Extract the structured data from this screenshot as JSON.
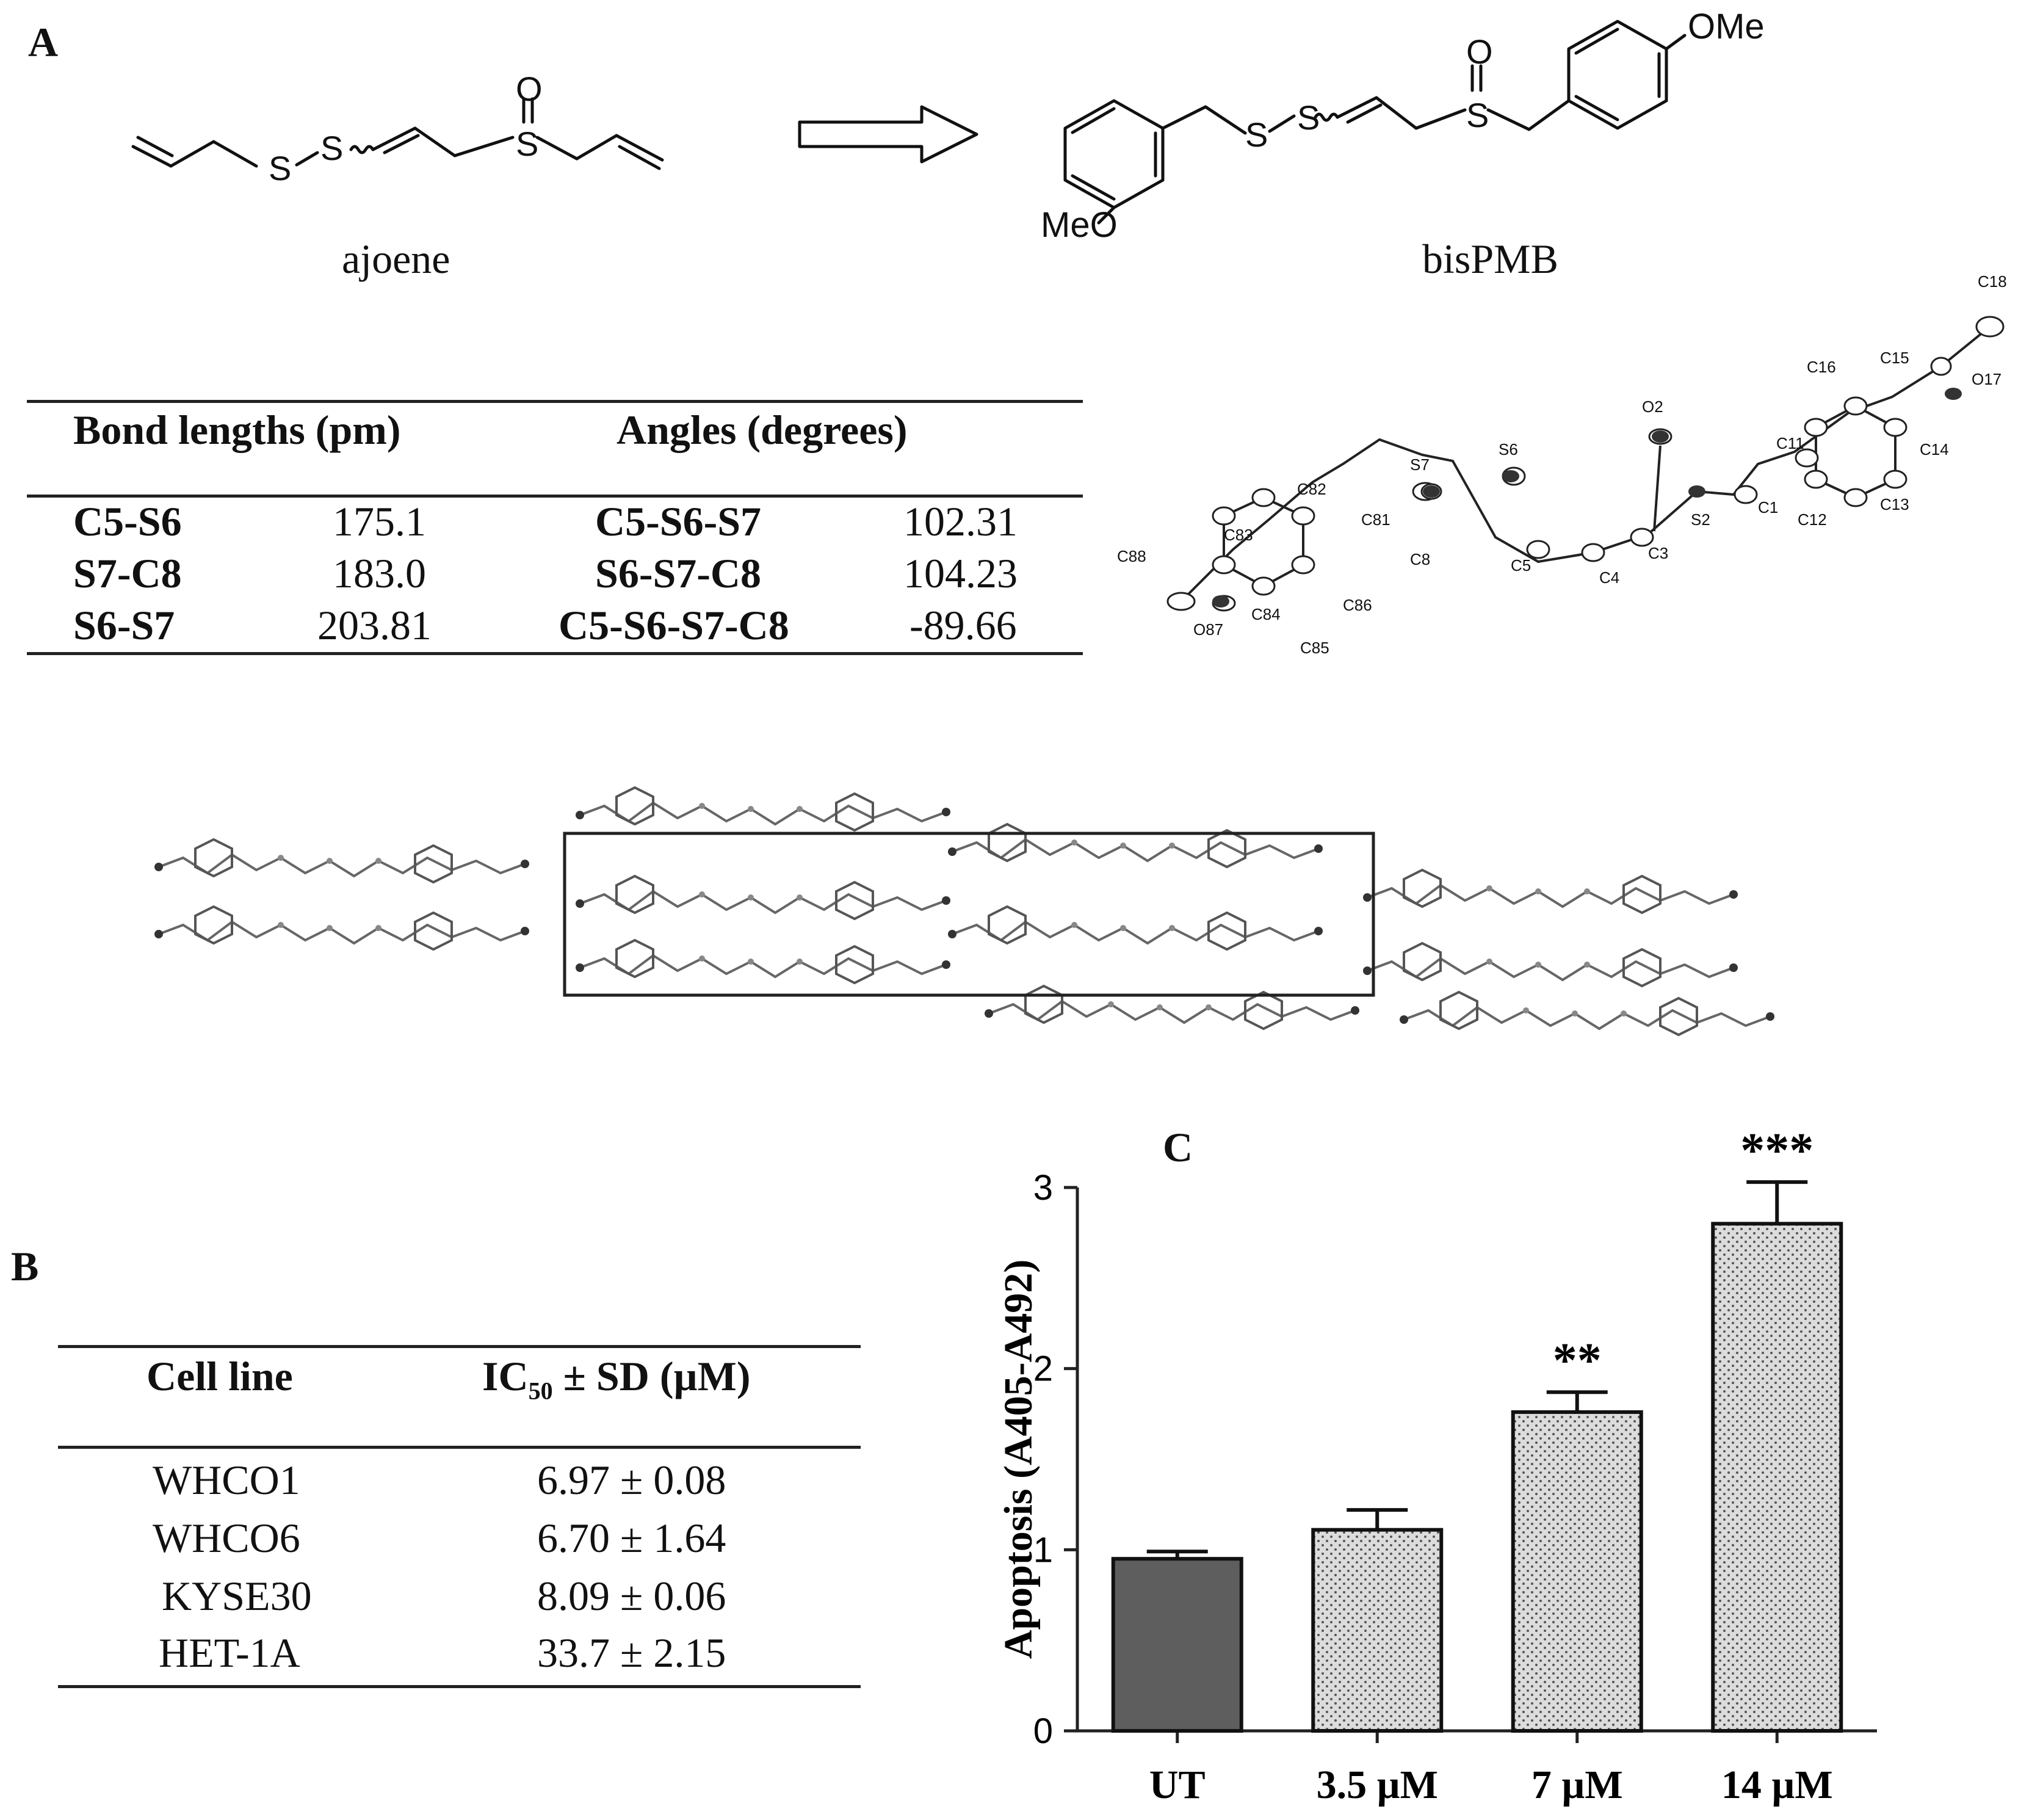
{
  "panel_a": {
    "label": "A",
    "ajoene_name": "ajoene",
    "bispmb_name": "bisPMB",
    "bispmb_groups": {
      "ome_top": "OMe",
      "meo_left": "MeO"
    },
    "bond_table": {
      "header_bond": "Bond lengths (pm)",
      "header_angle": "Angles (degrees)",
      "rows": [
        {
          "bond": "C5-S6",
          "length": "175.1",
          "angle": "C5-S6-S7",
          "degrees": "102.31"
        },
        {
          "bond": "S7-C8",
          "length": "183.0",
          "angle": "S6-S7-C8",
          "degrees": "104.23"
        },
        {
          "bond": "S6-S7",
          "length": "203.81",
          "angle": "C5-S6-S7-C8",
          "degrees": "-89.66"
        }
      ]
    },
    "crystal_atoms": [
      "C18",
      "C16",
      "C15",
      "O17",
      "O2",
      "C11",
      "C14",
      "S7",
      "S6",
      "C82",
      "C81",
      "C1",
      "C83",
      "S2",
      "C12",
      "C13",
      "C3",
      "C88",
      "C8",
      "C5",
      "C4",
      "C84",
      "C86",
      "O87",
      "C85"
    ]
  },
  "panel_b": {
    "label": "B",
    "header_cell": "Cell line",
    "header_ic": "IC",
    "header_ic_sub": "50",
    "header_ic_rest": " ± SD (µM)",
    "rows": [
      {
        "cell": "WHCO1",
        "ic50": "6.97 ± 0.08"
      },
      {
        "cell": "WHCO6",
        "ic50": "6.70 ± 1.64"
      },
      {
        "cell": "KYSE30",
        "ic50": "8.09 ± 0.06"
      },
      {
        "cell": "HET-1A",
        "ic50": "33.7 ± 2.15"
      }
    ]
  },
  "panel_c": {
    "label": "C"
  },
  "chart_data": {
    "type": "bar",
    "title": "",
    "xlabel": "",
    "ylabel": "Apoptosis (A405-A492)",
    "categories": [
      "UT",
      "3.5 µM",
      "7 µM",
      "14 µM"
    ],
    "values": [
      0.95,
      1.11,
      1.76,
      2.8
    ],
    "errors": [
      0.04,
      0.11,
      0.11,
      0.23
    ],
    "significance": [
      "",
      "",
      "**",
      "***"
    ],
    "ylim": [
      0,
      3
    ],
    "yticks": [
      "0",
      "1",
      "2",
      "3"
    ],
    "colors": {
      "untreated": "#5e5e5e",
      "treated": "#d9d9d9"
    }
  }
}
